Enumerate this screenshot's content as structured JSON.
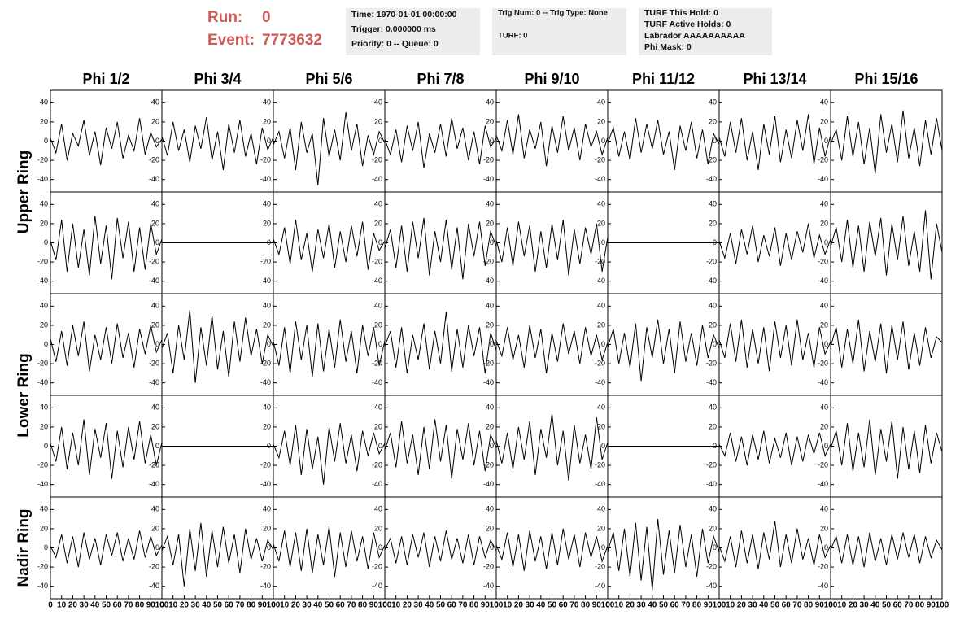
{
  "header": {
    "run_label": "Run:",
    "run": 0,
    "event_label": "Event:",
    "event": 7773632,
    "boxes": [
      [
        "Time: 1970-01-01 00:00:00",
        "Trigger: 0.000000 ms",
        "Priority: 0 -- Queue: 0"
      ],
      [
        "Trig Num: 0 -- Trig Type: None",
        "TURF: 0"
      ],
      [
        "TURF This Hold: 0",
        "TURF Active Holds: 0",
        "Labrador AAAAAAAAAA",
        "Phi Mask: 0"
      ]
    ]
  },
  "chart_data": {
    "type": "line",
    "color": "#000000",
    "columns": [
      "Phi 1/2",
      "Phi 3/4",
      "Phi 5/6",
      "Phi 7/8",
      "Phi 9/10",
      "Phi 11/12",
      "Phi 13/14",
      "Phi 15/16"
    ],
    "x": [
      0,
      5,
      10,
      15,
      20,
      25,
      30,
      35,
      40,
      45,
      50,
      55,
      60,
      65,
      70,
      75,
      80,
      85,
      90,
      95,
      100
    ],
    "xlim": [
      0,
      100
    ],
    "xticks": [
      0,
      10,
      20,
      30,
      40,
      50,
      60,
      70,
      80,
      90,
      100
    ],
    "ylim": [
      -53,
      53
    ],
    "yticks": [
      -40,
      -20,
      0,
      20,
      40
    ],
    "rings": [
      {
        "name": "Upper Ring",
        "rows": [
          [
            [
              3,
              -12,
              18,
              -20,
              8,
              -5,
              22,
              -15,
              10,
              -25,
              14,
              -8,
              20,
              -18,
              6,
              -10,
              24,
              -14,
              9,
              -6,
              2
            ],
            [
              5,
              -15,
              20,
              -10,
              12,
              -22,
              16,
              -8,
              25,
              -20,
              10,
              -30,
              18,
              -12,
              22,
              -16,
              8,
              -24,
              14,
              -9,
              4
            ],
            [
              -4,
              10,
              -18,
              14,
              -30,
              20,
              -12,
              8,
              -46,
              24,
              -16,
              12,
              -20,
              30,
              -10,
              18,
              -26,
              6,
              -14,
              10,
              -2
            ],
            [
              2,
              -14,
              12,
              -22,
              16,
              -10,
              20,
              -28,
              8,
              -12,
              18,
              -16,
              24,
              -8,
              14,
              -20,
              10,
              -24,
              16,
              -6,
              3
            ],
            [
              6,
              -10,
              22,
              -14,
              28,
              -18,
              12,
              -8,
              20,
              -26,
              16,
              -12,
              26,
              -10,
              14,
              -20,
              18,
              -6,
              10,
              -14,
              4
            ],
            [
              -2,
              14,
              -16,
              10,
              -20,
              24,
              -12,
              18,
              -8,
              22,
              -14,
              10,
              -30,
              16,
              -10,
              20,
              -18,
              12,
              -24,
              8,
              -3
            ],
            [
              4,
              -16,
              20,
              -12,
              24,
              -20,
              10,
              -30,
              18,
              -14,
              26,
              -22,
              12,
              -18,
              22,
              -10,
              28,
              -24,
              14,
              -16,
              6
            ],
            [
              -3,
              12,
              -20,
              26,
              -16,
              20,
              -24,
              14,
              -34,
              28,
              -12,
              18,
              -22,
              32,
              -18,
              14,
              -26,
              22,
              -14,
              24,
              -10
            ]
          ],
          [
            [
              2,
              -18,
              24,
              -30,
              20,
              -26,
              14,
              -34,
              28,
              -22,
              18,
              -38,
              26,
              -16,
              22,
              -30,
              16,
              -28,
              20,
              -12,
              4
            ],
            [
              0,
              0,
              0,
              0,
              0,
              0,
              0,
              0,
              0,
              0,
              0,
              0,
              0,
              0,
              0,
              0,
              0,
              0,
              0,
              0,
              0
            ],
            [
              4,
              -12,
              16,
              -22,
              24,
              -18,
              10,
              -30,
              14,
              -16,
              20,
              -26,
              12,
              -20,
              18,
              -14,
              22,
              -28,
              10,
              -8,
              2
            ],
            [
              -6,
              14,
              -26,
              18,
              -30,
              22,
              -16,
              26,
              -34,
              12,
              -20,
              24,
              -28,
              16,
              -38,
              20,
              -14,
              22,
              -24,
              12,
              -4
            ],
            [
              3,
              -20,
              16,
              -24,
              22,
              -14,
              18,
              -30,
              12,
              -26,
              20,
              -18,
              24,
              -34,
              14,
              -22,
              16,
              -12,
              20,
              -30,
              6
            ],
            [
              0,
              0,
              0,
              0,
              0,
              0,
              0,
              0,
              0,
              0,
              0,
              0,
              0,
              0,
              0,
              0,
              0,
              0,
              0,
              0,
              0
            ],
            [
              2,
              -16,
              10,
              -22,
              14,
              -12,
              18,
              -20,
              8,
              -14,
              16,
              -24,
              10,
              -18,
              12,
              -10,
              20,
              -16,
              8,
              -12,
              4
            ],
            [
              -4,
              16,
              -20,
              24,
              -26,
              18,
              -30,
              22,
              -14,
              26,
              -34,
              20,
              -18,
              28,
              -24,
              12,
              -30,
              34,
              -38,
              20,
              -10
            ]
          ]
        ]
      },
      {
        "name": "Lower Ring",
        "rows": [
          [
            [
              6,
              -18,
              14,
              -22,
              20,
              -12,
              24,
              -28,
              10,
              -16,
              18,
              -20,
              22,
              -14,
              12,
              -24,
              16,
              -10,
              20,
              -8,
              5
            ],
            [
              -4,
              12,
              -30,
              20,
              -16,
              36,
              -40,
              18,
              -22,
              30,
              -26,
              14,
              -34,
              24,
              -18,
              28,
              -12,
              16,
              -20,
              10,
              -2
            ],
            [
              3,
              -22,
              18,
              -30,
              24,
              -16,
              20,
              -34,
              22,
              -28,
              16,
              -24,
              26,
              -18,
              14,
              -30,
              20,
              -12,
              18,
              -22,
              4
            ],
            [
              -2,
              14,
              -24,
              18,
              -30,
              10,
              -16,
              22,
              -26,
              14,
              -20,
              34,
              -28,
              16,
              -24,
              20,
              -12,
              18,
              -30,
              12,
              -6
            ],
            [
              4,
              -12,
              18,
              -16,
              10,
              -24,
              20,
              -14,
              16,
              -30,
              12,
              -18,
              22,
              -10,
              14,
              -20,
              18,
              -12,
              10,
              -16,
              2
            ],
            [
              -3,
              16,
              -20,
              12,
              -24,
              22,
              -38,
              18,
              -14,
              26,
              -20,
              16,
              -30,
              24,
              -18,
              12,
              -22,
              20,
              -14,
              10,
              -4
            ],
            [
              5,
              -14,
              22,
              -18,
              26,
              -24,
              16,
              -20,
              18,
              -28,
              24,
              -14,
              20,
              -22,
              26,
              -16,
              12,
              -24,
              18,
              -10,
              3
            ],
            [
              -2,
              18,
              -24,
              16,
              -20,
              26,
              -28,
              14,
              -18,
              22,
              -30,
              20,
              -16,
              24,
              -26,
              12,
              -22,
              18,
              -14,
              8,
              2
            ]
          ],
          [
            [
              3,
              -16,
              20,
              -24,
              14,
              -20,
              28,
              -30,
              18,
              -12,
              24,
              -34,
              16,
              -22,
              20,
              -14,
              26,
              -18,
              12,
              -20,
              4
            ],
            [
              0,
              0,
              0,
              0,
              0,
              0,
              0,
              0,
              0,
              0,
              0,
              0,
              0,
              0,
              0,
              0,
              0,
              0,
              0,
              0,
              0
            ],
            [
              2,
              -12,
              16,
              -20,
              22,
              -30,
              18,
              -24,
              10,
              -40,
              20,
              -16,
              24,
              -18,
              12,
              -26,
              16,
              -10,
              14,
              -8,
              3
            ],
            [
              -4,
              14,
              -22,
              26,
              -18,
              12,
              -30,
              20,
              -24,
              28,
              -16,
              22,
              -34,
              18,
              -14,
              24,
              -20,
              16,
              -26,
              12,
              -2
            ],
            [
              6,
              -18,
              14,
              -24,
              20,
              -14,
              26,
              -30,
              18,
              -12,
              34,
              -20,
              16,
              -36,
              22,
              -18,
              12,
              -24,
              30,
              -14,
              4
            ],
            [
              0,
              0,
              0,
              0,
              0,
              0,
              0,
              0,
              0,
              0,
              0,
              0,
              0,
              0,
              0,
              0,
              0,
              0,
              0,
              0,
              0
            ],
            [
              2,
              -10,
              14,
              -16,
              10,
              -20,
              12,
              -14,
              16,
              -18,
              8,
              -12,
              14,
              -20,
              10,
              -16,
              12,
              -8,
              14,
              -10,
              2
            ],
            [
              -3,
              16,
              -20,
              24,
              -26,
              14,
              -22,
              28,
              -30,
              18,
              -16,
              26,
              -34,
              20,
              -24,
              16,
              -28,
              22,
              -18,
              14,
              -6
            ]
          ]
        ]
      },
      {
        "name": "Nadir Ring",
        "rows": [
          [
            [
              2,
              -10,
              14,
              -16,
              12,
              -20,
              16,
              -12,
              10,
              -18,
              14,
              -8,
              16,
              -14,
              10,
              -12,
              18,
              -10,
              12,
              -8,
              3
            ],
            [
              -3,
              12,
              -18,
              14,
              -40,
              20,
              -24,
              26,
              -30,
              18,
              -20,
              22,
              -16,
              14,
              -26,
              20,
              -12,
              10,
              -14,
              8,
              -2
            ],
            [
              4,
              -14,
              18,
              -20,
              16,
              -24,
              20,
              -26,
              14,
              -18,
              22,
              -30,
              16,
              -20,
              18,
              -14,
              12,
              -22,
              16,
              -10,
              3
            ],
            [
              -2,
              10,
              -16,
              12,
              -18,
              14,
              -10,
              16,
              -20,
              12,
              -14,
              18,
              -12,
              10,
              -16,
              14,
              -18,
              12,
              -10,
              8,
              -3
            ],
            [
              3,
              -12,
              16,
              -20,
              14,
              -24,
              18,
              -14,
              12,
              -22,
              16,
              -18,
              20,
              -12,
              14,
              -20,
              16,
              -10,
              12,
              -14,
              2
            ],
            [
              -4,
              16,
              -24,
              20,
              -30,
              26,
              -34,
              22,
              -44,
              30,
              -28,
              18,
              -26,
              24,
              -20,
              14,
              -30,
              20,
              -16,
              12,
              -4
            ],
            [
              2,
              -14,
              12,
              -20,
              18,
              -16,
              14,
              -22,
              16,
              -12,
              28,
              -20,
              14,
              -16,
              20,
              -12,
              10,
              -18,
              14,
              -10,
              3
            ],
            [
              -2,
              12,
              -16,
              14,
              -18,
              12,
              -20,
              16,
              -14,
              10,
              -18,
              14,
              -12,
              16,
              -10,
              14,
              -16,
              12,
              -10,
              8,
              -2
            ]
          ]
        ]
      }
    ]
  }
}
